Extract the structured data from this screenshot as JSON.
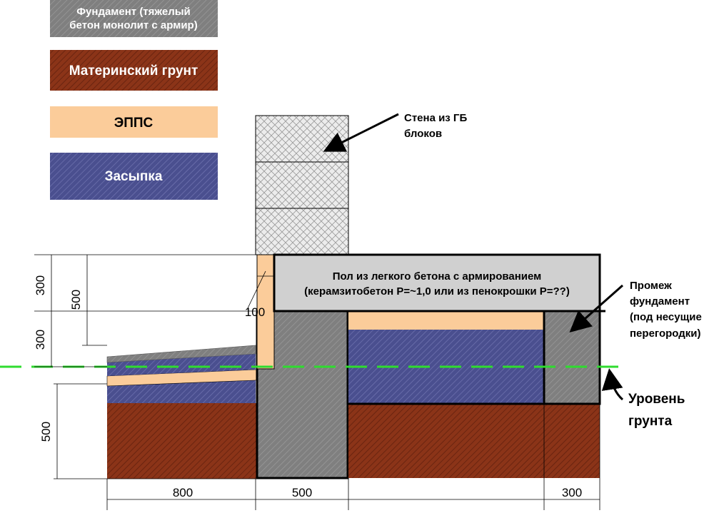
{
  "legend": {
    "foundation": [
      "Фундамент (тяжелый",
      "бетон монолит с армир)"
    ],
    "native_soil": "Материнский грунт",
    "epps": "ЭППС",
    "backfill": "Засыпка"
  },
  "annotations": {
    "wall": [
      "Стена из ГБ",
      "блоков"
    ],
    "floor": [
      "Пол из легкого бетона с армированием",
      "(керамзитобетон Р=~1,0 или из пенокрошки Р=??)"
    ],
    "inter_foundation": [
      "Промеж",
      "фундамент",
      "(под несущие",
      "перегородки)"
    ],
    "ground_level": [
      "Уровень",
      "грунта"
    ]
  },
  "dimensions": {
    "v_top_300": "300",
    "v_500_upper": "500",
    "v_mid_300": "300",
    "v_500_lower": "500",
    "epps_100": "100",
    "h_800": "800",
    "h_500": "500",
    "h_300": "300"
  },
  "colors": {
    "foundation": "#7f7f7f",
    "native_soil": "#8b3418",
    "epps": "#fbcc9a",
    "backfill": "#4a4f8f",
    "floor": "#d0d0d0",
    "ground_line": "#2fdc2f"
  }
}
